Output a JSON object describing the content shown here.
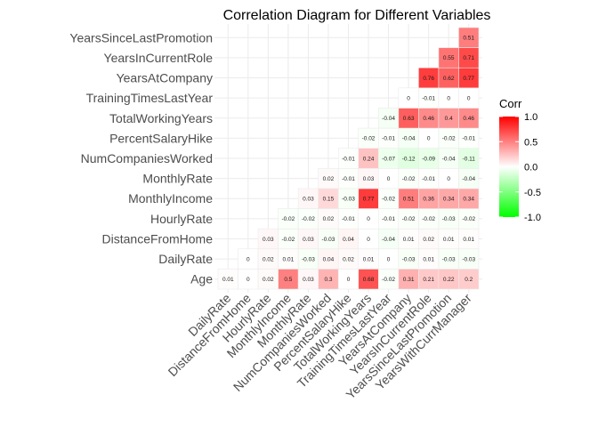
{
  "chart_data": {
    "type": "heatmap",
    "title": "Correlation Diagram for Different Variables",
    "variables": [
      "Age",
      "DailyRate",
      "DistanceFromHome",
      "HourlyRate",
      "MonthlyIncome",
      "MonthlyRate",
      "NumCompaniesWorked",
      "PercentSalaryHike",
      "TotalWorkingYears",
      "TrainingTimesLastYear",
      "YearsAtCompany",
      "YearsInCurrentRole",
      "YearsSinceLastPromotion",
      "YearsWithCurrManager"
    ],
    "x_categories": [
      "DailyRate",
      "DistanceFromHome",
      "HourlyRate",
      "MonthlyIncome",
      "MonthlyRate",
      "NumCompaniesWorked",
      "PercentSalaryHike",
      "TotalWorkingYears",
      "TrainingTimesLastYear",
      "YearsAtCompany",
      "YearsInCurrentRole",
      "YearsSinceLastPromotion",
      "YearsWithCurrManager"
    ],
    "y_categories": [
      "Age",
      "DailyRate",
      "DistanceFromHome",
      "HourlyRate",
      "MonthlyIncome",
      "MonthlyRate",
      "NumCompaniesWorked",
      "PercentSalaryHike",
      "TotalWorkingYears",
      "TrainingTimesLastYear",
      "YearsAtCompany",
      "YearsInCurrentRole",
      "YearsSinceLastPromotion"
    ],
    "rows": {
      "Age": [
        0.01,
        0,
        0.02,
        0.5,
        0.03,
        0.3,
        0,
        0.68,
        -0.02,
        0.31,
        0.21,
        0.22,
        0.2
      ],
      "DailyRate": [
        0,
        0.02,
        0.01,
        -0.03,
        0.04,
        0.02,
        0.01,
        0,
        -0.03,
        0.01,
        -0.03,
        -0.03
      ],
      "DistanceFromHome": [
        0.03,
        -0.02,
        0.03,
        -0.03,
        0.04,
        0,
        -0.04,
        0.01,
        0.02,
        0.01,
        0.01
      ],
      "HourlyRate": [
        -0.02,
        -0.02,
        0.02,
        -0.01,
        0,
        -0.01,
        -0.02,
        -0.02,
        -0.03,
        -0.02
      ],
      "MonthlyIncome": [
        0.03,
        0.15,
        -0.03,
        0.77,
        -0.02,
        0.51,
        0.36,
        0.34,
        0.34
      ],
      "MonthlyRate": [
        0.02,
        -0.01,
        0.03,
        0,
        -0.02,
        -0.01,
        0,
        -0.04
      ],
      "NumCompaniesWorked": [
        -0.01,
        0.24,
        -0.07,
        -0.12,
        -0.09,
        -0.04,
        -0.11
      ],
      "PercentSalaryHike": [
        -0.02,
        -0.01,
        -0.04,
        0,
        -0.02,
        -0.01
      ],
      "TotalWorkingYears": [
        -0.04,
        0.63,
        0.46,
        0.4,
        0.46
      ],
      "TrainingTimesLastYear": [
        0,
        -0.01,
        0,
        0
      ],
      "YearsAtCompany": [
        0.76,
        0.62,
        0.77
      ],
      "YearsInCurrentRole": [
        0.55,
        0.71
      ],
      "YearsSinceLastPromotion": [
        0.51
      ]
    },
    "legend": {
      "title": "Corr",
      "ticks": [
        1.0,
        0.5,
        0.0,
        -0.5,
        -1.0
      ],
      "tick_labels": [
        "1.0",
        "0.5",
        "0.0",
        "-0.5",
        "-1.0"
      ],
      "range": [
        -1,
        1
      ],
      "placement": "right"
    },
    "colors": {
      "low": "#00ff00",
      "mid": "#ffffff",
      "high": "#ff0000",
      "grid": "#ebebeb"
    }
  }
}
